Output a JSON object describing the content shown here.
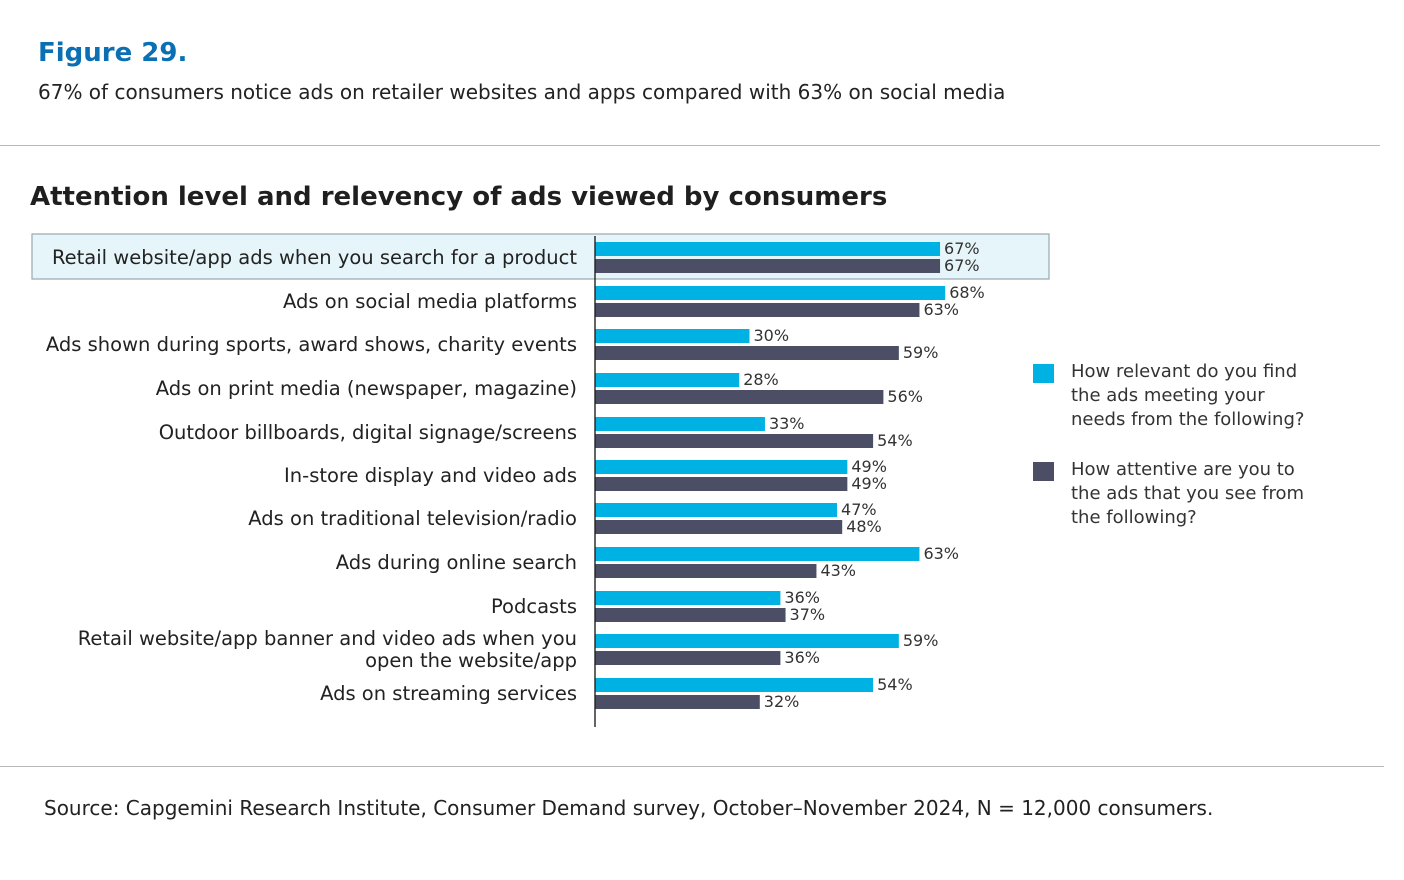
{
  "header": {
    "figure_label": "Figure 29.",
    "subtitle": "67% of consumers notice ads on retailer websites and apps compared with 63% on social media"
  },
  "colors": {
    "relevant": "#00b2e3",
    "attentive": "#4c4e66",
    "highlight_fill": "#e6f5fa",
    "highlight_border": "#9aa6b0",
    "figure_label": "#0a70b3"
  },
  "chart_data": {
    "type": "bar",
    "orientation": "horizontal",
    "title": "Attention level and relevency of ads viewed by consumers",
    "categories": [
      "Retail website/app ads when you search for a product",
      "Ads on social media platforms",
      "Ads shown during sports, award shows, charity events",
      "Ads on print media (newspaper, magazine)",
      "Outdoor billboards, digital signage/screens",
      "In-store display and video ads",
      "Ads on traditional television/radio",
      "Ads during online search",
      "Podcasts",
      "Retail website/app banner and video ads when you open the website/app",
      "Ads on streaming services"
    ],
    "category_lines": [
      [
        "Retail website/app ads when you search for a product"
      ],
      [
        "Ads on social media platforms"
      ],
      [
        "Ads shown during sports, award shows, charity events"
      ],
      [
        "Ads on print media (newspaper, magazine)"
      ],
      [
        "Outdoor billboards, digital signage/screens"
      ],
      [
        "In-store display and video ads"
      ],
      [
        "Ads on traditional television/radio"
      ],
      [
        "Ads during online search"
      ],
      [
        "Podcasts"
      ],
      [
        "Retail website/app banner and video ads when you",
        "open the website/app"
      ],
      [
        "Ads on streaming services"
      ]
    ],
    "highlighted_category": "Retail website/app ads when you search for a product",
    "series": [
      {
        "name": "How relevant do you find the ads meeting your needs from the following?",
        "legend_lines": [
          "How relevant do you find",
          "the ads meeting your",
          "needs from the following?"
        ],
        "values": [
          67,
          68,
          30,
          28,
          33,
          49,
          47,
          63,
          36,
          59,
          54
        ],
        "labels": [
          "67%",
          "68%",
          "30%",
          "28%",
          "33%",
          "49%",
          "47%",
          "63%",
          "36%",
          "59%",
          "54%"
        ]
      },
      {
        "name": "How attentive are you to the ads that you see from the following?",
        "legend_lines": [
          "How attentive are you to",
          "the ads that you see from",
          "the following?"
        ],
        "values": [
          67,
          63,
          59,
          56,
          54,
          49,
          48,
          43,
          37,
          36,
          32
        ],
        "labels": [
          "67%",
          "63%",
          "59%",
          "56%",
          "54%",
          "49%",
          "48%",
          "43%",
          "37%",
          "36%",
          "32%"
        ]
      }
    ],
    "value_unit": "%",
    "xlim": [
      0,
      100
    ],
    "grid": false,
    "legend_position": "right"
  },
  "source": "Source: Capgemini Research Institute, Consumer Demand survey, October–November 2024, N = 12,000 consumers."
}
